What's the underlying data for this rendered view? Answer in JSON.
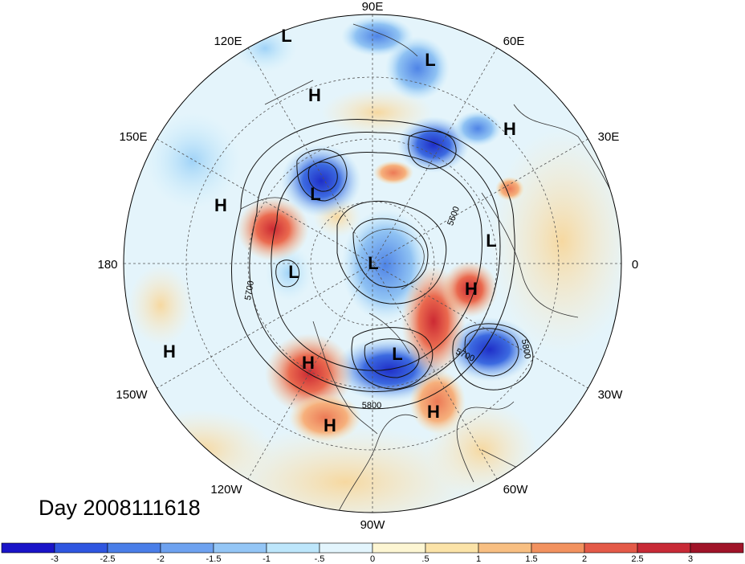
{
  "title": "Day 2008111618",
  "longitude_labels": {
    "e90": "90E",
    "e120": "120E",
    "e60": "60E",
    "e150": "150E",
    "e30": "30E",
    "d180": "180",
    "d0": "0",
    "w150": "150W",
    "w30": "30W",
    "w120": "120W",
    "w60": "60W",
    "w90": "90W"
  },
  "contour_labels": [
    "5700",
    "5600",
    "5700",
    "5800",
    "5800"
  ],
  "centers": [
    "L",
    "L",
    "H",
    "H",
    "H",
    "L",
    "H",
    "L",
    "L",
    "L",
    "H",
    "H",
    "L",
    "H",
    "H",
    "H"
  ],
  "colorbar": {
    "labels": [
      "-3",
      "-2.5",
      "-2",
      "-1.5",
      "-1",
      "-.5",
      "0",
      ".5",
      "1",
      "1.5",
      "2",
      "2.5",
      "3"
    ],
    "colors": [
      "#1a14c8",
      "#2f56e0",
      "#4a7ee8",
      "#6ea2f0",
      "#94c6f6",
      "#bde6fb",
      "#e3f5fd",
      "#fdf6d3",
      "#fbe3a8",
      "#f8bf82",
      "#f2925f",
      "#e45a48",
      "#c82a36",
      "#a01428"
    ]
  },
  "colors": {
    "blue_strong": "#1f3fd0",
    "blue_mid": "#5b8ee6",
    "blue_light": "#bfe6fb",
    "red_strong": "#d8393b",
    "red_mid": "#f08a5c",
    "tan": "#f6deae"
  }
}
